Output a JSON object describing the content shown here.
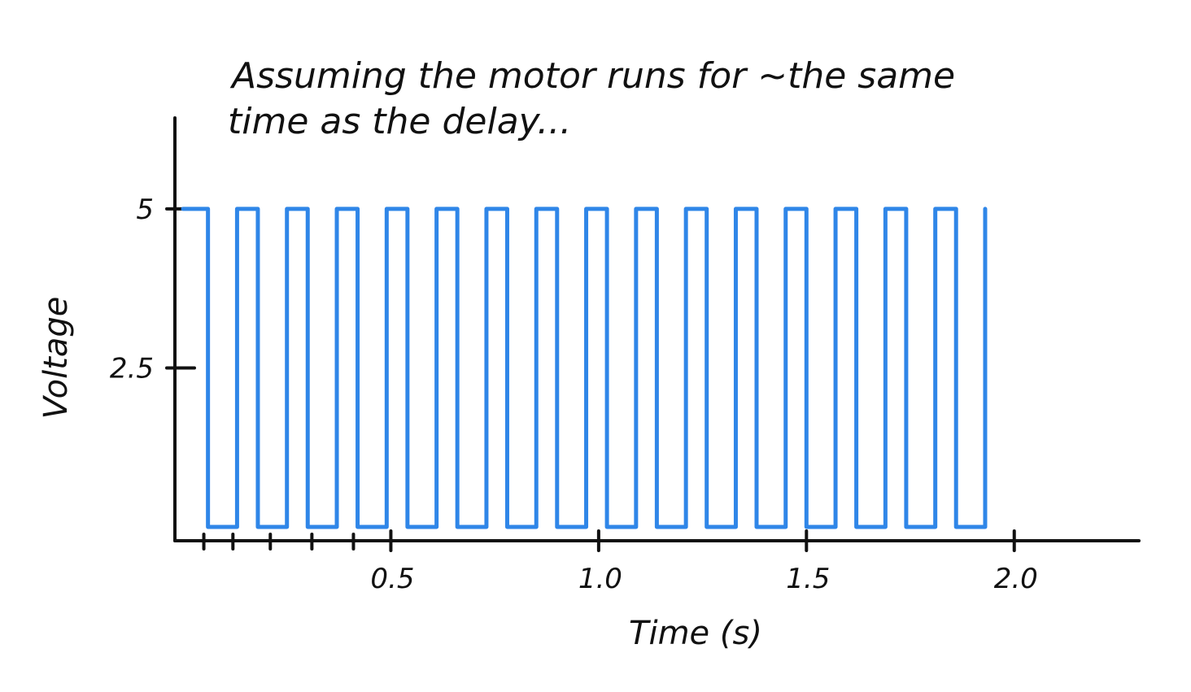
{
  "chart_data": {
    "type": "line",
    "title_lines": [
      "Assuming the motor runs for ~the same",
      "time as the delay..."
    ],
    "xlabel": "Time (s)",
    "ylabel": "Voltage",
    "xlim": [
      0,
      2.3
    ],
    "ylim": [
      0,
      5.6
    ],
    "x_ticks": [
      {
        "value": 0.5,
        "label": "0.5"
      },
      {
        "value": 1.0,
        "label": "1.0"
      },
      {
        "value": 1.5,
        "label": "1.5"
      },
      {
        "value": 2.0,
        "label": "2.0"
      }
    ],
    "x_minor_ticks": [
      0.05,
      0.12,
      0.21,
      0.31,
      0.41
    ],
    "y_ticks": [
      {
        "value": 2.5,
        "label": "2.5"
      },
      {
        "value": 5,
        "label": "5"
      }
    ],
    "grid": false,
    "series": [
      {
        "color": "#2f86e8",
        "high_voltage": 5,
        "low_voltage": 0,
        "high_intervals": [
          [
            0.0,
            0.06
          ],
          [
            0.13,
            0.18
          ],
          [
            0.25,
            0.3
          ],
          [
            0.37,
            0.42
          ],
          [
            0.49,
            0.54
          ],
          [
            0.61,
            0.66
          ],
          [
            0.73,
            0.78
          ],
          [
            0.85,
            0.9
          ],
          [
            0.97,
            1.02
          ],
          [
            1.09,
            1.14
          ],
          [
            1.21,
            1.26
          ],
          [
            1.33,
            1.38
          ],
          [
            1.45,
            1.5
          ],
          [
            1.57,
            1.62
          ],
          [
            1.69,
            1.74
          ],
          [
            1.81,
            1.86
          ]
        ],
        "end_x": 1.93
      }
    ]
  }
}
